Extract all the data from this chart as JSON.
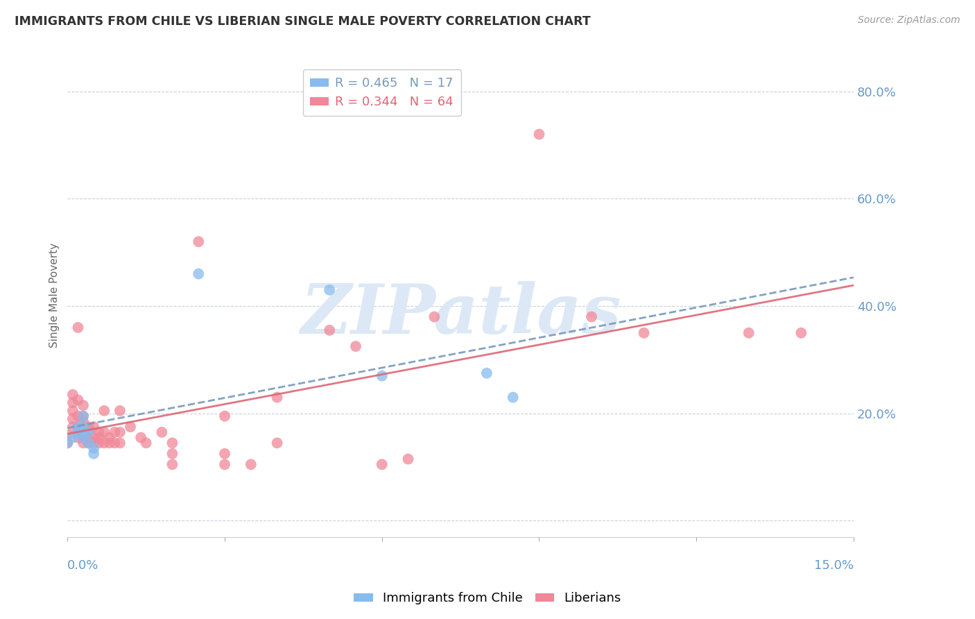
{
  "title": "IMMIGRANTS FROM CHILE VS LIBERIAN SINGLE MALE POVERTY CORRELATION CHART",
  "source": "Source: ZipAtlas.com",
  "ylabel": "Single Male Poverty",
  "right_yticklabels": [
    "",
    "20.0%",
    "40.0%",
    "60.0%",
    "80.0%"
  ],
  "right_ytick_vals": [
    0.0,
    0.2,
    0.4,
    0.6,
    0.8
  ],
  "xmin": 0.0,
  "xmax": 0.15,
  "ymin": -0.03,
  "ymax": 0.87,
  "legend_chile": "R = 0.465   N = 17",
  "legend_lib": "R = 0.344   N = 64",
  "chile_points": [
    [
      0.0,
      0.145
    ],
    [
      0.001,
      0.155
    ],
    [
      0.002,
      0.165
    ],
    [
      0.002,
      0.175
    ],
    [
      0.003,
      0.155
    ],
    [
      0.003,
      0.165
    ],
    [
      0.003,
      0.175
    ],
    [
      0.003,
      0.195
    ],
    [
      0.004,
      0.165
    ],
    [
      0.004,
      0.145
    ],
    [
      0.005,
      0.135
    ],
    [
      0.005,
      0.125
    ],
    [
      0.025,
      0.46
    ],
    [
      0.05,
      0.43
    ],
    [
      0.06,
      0.27
    ],
    [
      0.08,
      0.275
    ],
    [
      0.085,
      0.23
    ]
  ],
  "liberian_points": [
    [
      0.0,
      0.145
    ],
    [
      0.0,
      0.16
    ],
    [
      0.001,
      0.175
    ],
    [
      0.001,
      0.19
    ],
    [
      0.001,
      0.205
    ],
    [
      0.001,
      0.22
    ],
    [
      0.001,
      0.235
    ],
    [
      0.002,
      0.155
    ],
    [
      0.002,
      0.165
    ],
    [
      0.002,
      0.175
    ],
    [
      0.002,
      0.195
    ],
    [
      0.002,
      0.225
    ],
    [
      0.002,
      0.36
    ],
    [
      0.003,
      0.145
    ],
    [
      0.003,
      0.155
    ],
    [
      0.003,
      0.165
    ],
    [
      0.003,
      0.175
    ],
    [
      0.003,
      0.185
    ],
    [
      0.003,
      0.195
    ],
    [
      0.003,
      0.215
    ],
    [
      0.004,
      0.145
    ],
    [
      0.004,
      0.155
    ],
    [
      0.004,
      0.165
    ],
    [
      0.004,
      0.175
    ],
    [
      0.005,
      0.145
    ],
    [
      0.005,
      0.155
    ],
    [
      0.005,
      0.175
    ],
    [
      0.006,
      0.145
    ],
    [
      0.006,
      0.155
    ],
    [
      0.006,
      0.165
    ],
    [
      0.007,
      0.145
    ],
    [
      0.007,
      0.165
    ],
    [
      0.007,
      0.205
    ],
    [
      0.008,
      0.145
    ],
    [
      0.008,
      0.155
    ],
    [
      0.009,
      0.145
    ],
    [
      0.009,
      0.165
    ],
    [
      0.01,
      0.145
    ],
    [
      0.01,
      0.165
    ],
    [
      0.01,
      0.205
    ],
    [
      0.012,
      0.175
    ],
    [
      0.014,
      0.155
    ],
    [
      0.015,
      0.145
    ],
    [
      0.018,
      0.165
    ],
    [
      0.02,
      0.145
    ],
    [
      0.02,
      0.125
    ],
    [
      0.02,
      0.105
    ],
    [
      0.025,
      0.52
    ],
    [
      0.03,
      0.195
    ],
    [
      0.03,
      0.125
    ],
    [
      0.03,
      0.105
    ],
    [
      0.035,
      0.105
    ],
    [
      0.04,
      0.23
    ],
    [
      0.04,
      0.145
    ],
    [
      0.05,
      0.355
    ],
    [
      0.055,
      0.325
    ],
    [
      0.06,
      0.105
    ],
    [
      0.065,
      0.115
    ],
    [
      0.07,
      0.38
    ],
    [
      0.09,
      0.72
    ],
    [
      0.1,
      0.38
    ],
    [
      0.11,
      0.35
    ],
    [
      0.13,
      0.35
    ],
    [
      0.14,
      0.35
    ]
  ],
  "chile_color": "#88bbee",
  "liberian_color": "#f08898",
  "trend_chile_color": "#7799bb",
  "trend_liberian_color": "#dd6677",
  "background_color": "#ffffff",
  "grid_color": "#c8d0da",
  "title_color": "#333333",
  "axis_color": "#6699cc",
  "watermark_text": "ZIPatlas",
  "watermark_color": "#dce8f5"
}
